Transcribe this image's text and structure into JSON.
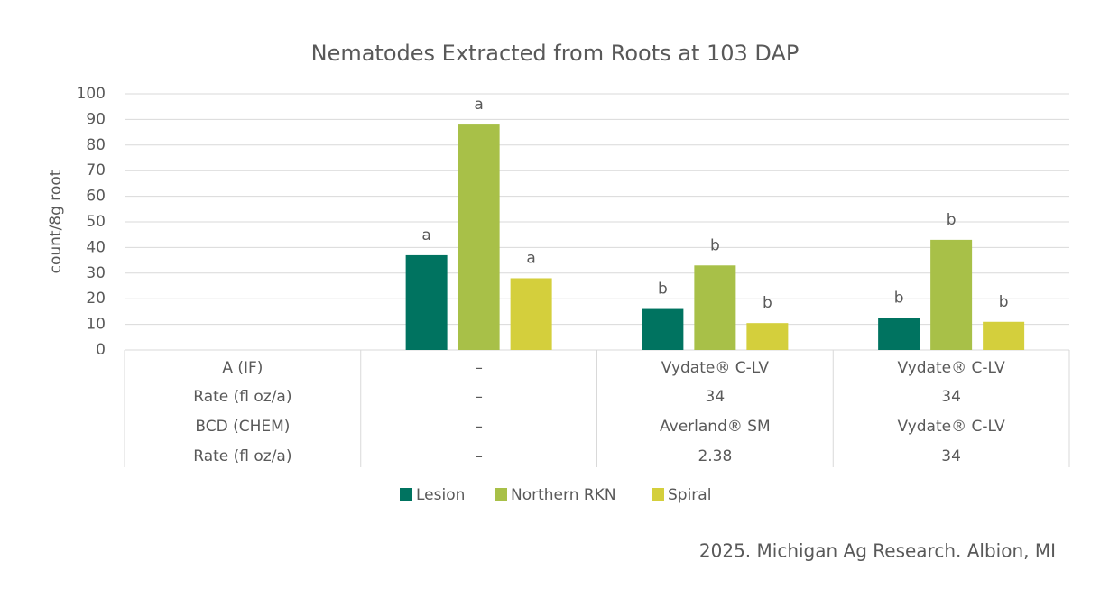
{
  "chart_data": {
    "type": "bar",
    "title": "Nematodes Extracted from Roots at 103 DAP",
    "y_label": "count/8g root",
    "footnote": "2025. Michigan Ag Research. Albion, MI",
    "categories": [
      [
        "A (IF)",
        "Rate (fl oz/a)",
        "BCD (CHEM)",
        "Rate (fl oz/a)"
      ],
      [
        "–",
        "–",
        "–",
        "–"
      ],
      [
        "Vydate® C-LV",
        "34",
        "Averland® SM",
        "2.38"
      ],
      [
        "Vydate® C-LV",
        "34",
        "Vydate® C-LV",
        "34"
      ]
    ],
    "series": [
      {
        "name": "Lesion",
        "color": "#007360",
        "values": [
          null,
          37,
          16,
          12.5
        ],
        "letters": [
          null,
          "a",
          "b",
          "b"
        ]
      },
      {
        "name": "Northern RKN",
        "color": "#a8c048",
        "values": [
          null,
          88,
          33,
          43
        ],
        "letters": [
          null,
          "a",
          "b",
          "b"
        ]
      },
      {
        "name": "Spiral",
        "color": "#d4cf3c",
        "values": [
          null,
          28,
          10.5,
          11
        ],
        "letters": [
          null,
          "a",
          "b",
          "b"
        ]
      }
    ],
    "ylim": [
      0,
      100
    ],
    "yticks": [
      0,
      10,
      20,
      30,
      40,
      50,
      60,
      70,
      80,
      90,
      100
    ],
    "grid": true,
    "legend": "bottom"
  }
}
